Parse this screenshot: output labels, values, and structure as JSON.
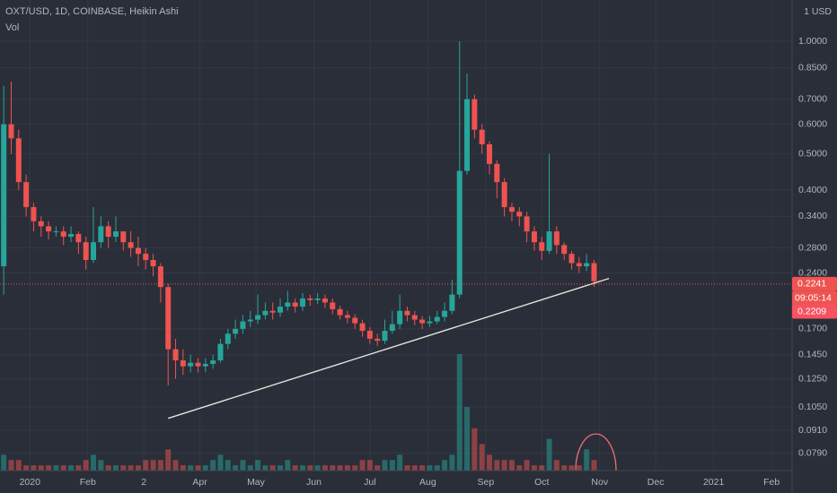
{
  "chart_data": {
    "type": "candlestick",
    "title": "OXT/USD, 1D, COINBASE, Heikin Ashi",
    "volume_label": "Vol",
    "unit_label": "1 USD",
    "log_scale": true,
    "grid": true,
    "up_color": "#26a69a",
    "down_color": "#ef5350",
    "x": [
      -14,
      -10,
      -6,
      -2,
      2,
      6,
      10,
      14,
      18,
      22,
      26,
      30,
      34,
      38,
      42,
      46,
      50,
      54,
      58,
      62,
      66,
      70,
      74,
      78,
      82,
      86,
      90,
      94,
      98,
      102,
      106,
      110,
      114,
      118,
      122,
      126,
      130,
      134,
      138,
      142,
      146,
      150,
      154,
      158,
      162,
      166,
      170,
      174,
      178,
      182,
      186,
      190,
      194,
      198,
      202,
      206,
      210,
      214,
      218,
      222,
      226,
      230,
      234,
      238,
      242,
      246,
      250,
      254,
      258,
      262,
      266,
      270,
      274,
      278,
      282,
      286,
      290,
      294,
      298,
      302
    ],
    "open": [
      0.25,
      0.6,
      0.55,
      0.42,
      0.36,
      0.33,
      0.32,
      0.31,
      0.31,
      0.3,
      0.305,
      0.29,
      0.26,
      0.29,
      0.32,
      0.3,
      0.31,
      0.29,
      0.28,
      0.27,
      0.26,
      0.25,
      0.22,
      0.15,
      0.14,
      0.135,
      0.138,
      0.135,
      0.137,
      0.14,
      0.155,
      0.165,
      0.17,
      0.178,
      0.18,
      0.185,
      0.19,
      0.188,
      0.195,
      0.2,
      0.195,
      0.205,
      0.203,
      0.205,
      0.2,
      0.192,
      0.185,
      0.182,
      0.176,
      0.168,
      0.16,
      0.158,
      0.168,
      0.175,
      0.19,
      0.185,
      0.18,
      0.176,
      0.178,
      0.183,
      0.19,
      0.21,
      0.45,
      0.7,
      0.58,
      0.53,
      0.47,
      0.42,
      0.36,
      0.35,
      0.34,
      0.31,
      0.29,
      0.275,
      0.31,
      0.285,
      0.27,
      0.255,
      0.25,
      0.255
    ],
    "high": [
      0.76,
      0.78,
      0.58,
      0.44,
      0.37,
      0.34,
      0.33,
      0.32,
      0.32,
      0.32,
      0.31,
      0.3,
      0.36,
      0.34,
      0.33,
      0.34,
      0.31,
      0.31,
      0.3,
      0.28,
      0.27,
      0.255,
      0.225,
      0.16,
      0.15,
      0.145,
      0.142,
      0.142,
      0.145,
      0.16,
      0.17,
      0.18,
      0.185,
      0.19,
      0.21,
      0.2,
      0.2,
      0.205,
      0.215,
      0.205,
      0.212,
      0.21,
      0.212,
      0.21,
      0.205,
      0.196,
      0.19,
      0.186,
      0.18,
      0.172,
      0.165,
      0.18,
      0.19,
      0.21,
      0.195,
      0.19,
      0.184,
      0.184,
      0.19,
      0.2,
      0.23,
      1.0,
      0.82,
      0.72,
      0.6,
      0.54,
      0.48,
      0.43,
      0.37,
      0.36,
      0.35,
      0.32,
      0.3,
      0.5,
      0.32,
      0.29,
      0.275,
      0.265,
      0.27,
      0.26
    ],
    "low": [
      0.21,
      0.5,
      0.4,
      0.34,
      0.31,
      0.3,
      0.295,
      0.3,
      0.285,
      0.29,
      0.27,
      0.245,
      0.255,
      0.28,
      0.28,
      0.29,
      0.275,
      0.265,
      0.25,
      0.245,
      0.235,
      0.2,
      0.12,
      0.125,
      0.128,
      0.13,
      0.13,
      0.13,
      0.133,
      0.138,
      0.15,
      0.16,
      0.165,
      0.172,
      0.175,
      0.18,
      0.18,
      0.183,
      0.19,
      0.188,
      0.19,
      0.196,
      0.198,
      0.193,
      0.186,
      0.18,
      0.176,
      0.17,
      0.162,
      0.155,
      0.153,
      0.155,
      0.165,
      0.17,
      0.178,
      0.174,
      0.17,
      0.172,
      0.175,
      0.178,
      0.186,
      0.205,
      0.44,
      0.55,
      0.5,
      0.44,
      0.38,
      0.34,
      0.33,
      0.32,
      0.29,
      0.275,
      0.26,
      0.27,
      0.27,
      0.26,
      0.245,
      0.24,
      0.243,
      0.22
    ],
    "close": [
      0.6,
      0.55,
      0.42,
      0.36,
      0.33,
      0.32,
      0.31,
      0.31,
      0.3,
      0.305,
      0.29,
      0.26,
      0.29,
      0.32,
      0.3,
      0.31,
      0.29,
      0.28,
      0.27,
      0.26,
      0.25,
      0.22,
      0.15,
      0.14,
      0.135,
      0.138,
      0.135,
      0.137,
      0.14,
      0.155,
      0.165,
      0.17,
      0.178,
      0.18,
      0.185,
      0.19,
      0.188,
      0.195,
      0.2,
      0.195,
      0.205,
      0.203,
      0.205,
      0.2,
      0.192,
      0.185,
      0.182,
      0.176,
      0.168,
      0.16,
      0.158,
      0.168,
      0.175,
      0.19,
      0.185,
      0.18,
      0.176,
      0.178,
      0.183,
      0.19,
      0.21,
      0.45,
      0.7,
      0.58,
      0.53,
      0.47,
      0.42,
      0.36,
      0.35,
      0.34,
      0.31,
      0.29,
      0.275,
      0.31,
      0.285,
      0.27,
      0.255,
      0.25,
      0.255,
      0.228
    ],
    "volume": [
      3,
      2,
      2,
      1,
      1,
      1,
      1,
      1,
      1,
      1,
      1,
      2,
      3,
      2,
      1,
      1,
      1,
      1,
      1,
      2,
      2,
      2,
      4,
      2,
      1,
      1,
      1,
      1,
      2,
      3,
      2,
      1,
      2,
      1,
      2,
      1,
      1,
      1,
      2,
      1,
      1,
      1,
      1,
      1,
      1,
      1,
      1,
      1,
      2,
      2,
      1,
      2,
      2,
      3,
      1,
      1,
      1,
      1,
      1,
      2,
      3,
      22,
      12,
      8,
      5,
      3,
      2,
      2,
      2,
      1,
      2,
      1,
      1,
      6,
      2,
      1,
      1,
      1,
      4,
      2
    ],
    "xlim": [
      -16,
      408
    ],
    "ylim": [
      0.071,
      1.29
    ],
    "xticks": [
      {
        "value": 0,
        "label": "2020"
      },
      {
        "value": 31,
        "label": "Feb"
      },
      {
        "value": 61,
        "label": "2"
      },
      {
        "value": 91,
        "label": "Apr"
      },
      {
        "value": 121,
        "label": "May"
      },
      {
        "value": 152,
        "label": "Jun"
      },
      {
        "value": 182,
        "label": "Jul"
      },
      {
        "value": 213,
        "label": "Aug"
      },
      {
        "value": 244,
        "label": "Sep"
      },
      {
        "value": 274,
        "label": "Oct"
      },
      {
        "value": 305,
        "label": "Nov"
      },
      {
        "value": 335,
        "label": "Dec"
      },
      {
        "value": 366,
        "label": "2021"
      },
      {
        "value": 397,
        "label": "Feb"
      }
    ],
    "yticks": [
      {
        "value": 1,
        "label": "1.0000"
      },
      {
        "value": 0.85,
        "label": "0.8500"
      },
      {
        "value": 0.7,
        "label": "0.7000"
      },
      {
        "value": 0.6,
        "label": "0.6000"
      },
      {
        "value": 0.5,
        "label": "0.5000"
      },
      {
        "value": 0.4,
        "label": "0.4000"
      },
      {
        "value": 0.34,
        "label": "0.3400"
      },
      {
        "value": 0.28,
        "label": "0.2800"
      },
      {
        "value": 0.24,
        "label": "0.2400"
      },
      {
        "value": 0.17,
        "label": "0.1700"
      },
      {
        "value": 0.145,
        "label": "0.1450"
      },
      {
        "value": 0.125,
        "label": "0.1250"
      },
      {
        "value": 0.105,
        "label": "0.1050"
      },
      {
        "value": 0.091,
        "label": "0.0910"
      },
      {
        "value": 0.079,
        "label": "0.0790"
      }
    ],
    "last_price": {
      "value": 0.2241,
      "label": "0.2241"
    },
    "countdown": "09:05:14",
    "second_price": {
      "value": 0.2209,
      "label": "0.2209"
    },
    "trendline": {
      "x": [
        74,
        310
      ],
      "y": [
        0.098,
        0.232
      ]
    }
  }
}
